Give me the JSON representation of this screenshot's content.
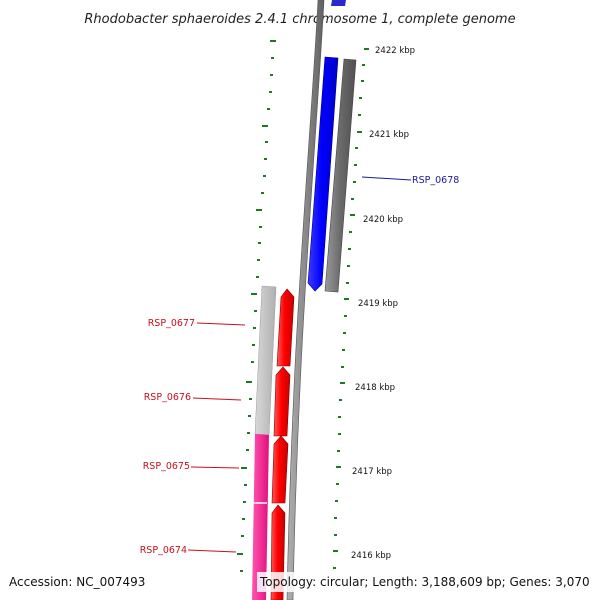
{
  "map": {
    "title": "Rhodobacter sphaeroides 2.4.1 chromosome 1, complete genome",
    "accession": "Accession: NC_007493",
    "topology": "Topology: circular; Length: 3,188,609 bp; Genes: 3,070"
  },
  "scale_ticks": [
    {
      "label": "2422 kbp"
    },
    {
      "label": "2421 kbp"
    },
    {
      "label": "2420 kbp"
    },
    {
      "label": "2419 kbp"
    },
    {
      "label": "2418 kbp"
    },
    {
      "label": "2417 kbp"
    },
    {
      "label": "2416 kbp"
    }
  ],
  "gene_labels": [
    {
      "id": "RSP_0678",
      "strand": "forward"
    },
    {
      "id": "RSP_0677",
      "strand": "reverse"
    },
    {
      "id": "RSP_0676",
      "strand": "reverse"
    },
    {
      "id": "RSP_0675",
      "strand": "reverse"
    },
    {
      "id": "RSP_0674",
      "strand": "reverse"
    }
  ],
  "colors": {
    "forward_gene": "#0000ff",
    "reverse_gene": "#ff0000",
    "label_forward": "#1a1aa0",
    "label_reverse": "#c8101e",
    "tick": "#1e7a1e",
    "backbone": "#8a8a8a",
    "forward_feature": "#6e6e6e",
    "reverse_feature_light": "#bdbdbd",
    "reverse_feature_pink": "#f0228c"
  }
}
